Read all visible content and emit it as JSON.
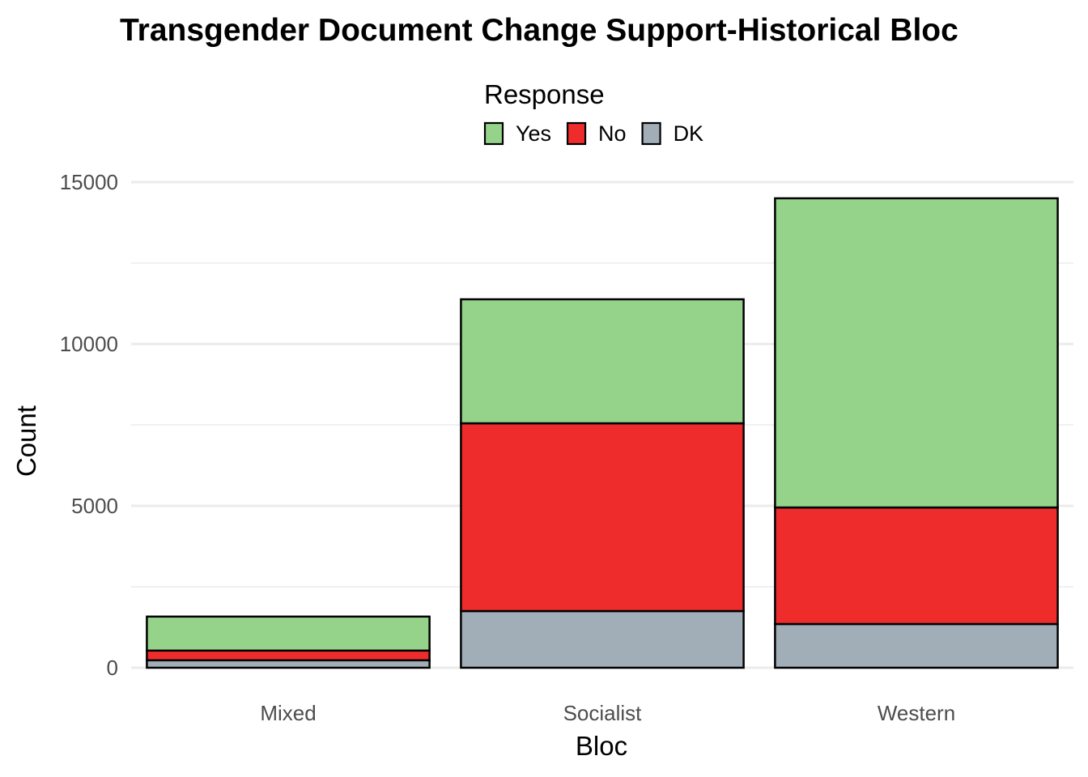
{
  "chart_data": {
    "type": "bar",
    "stacked": true,
    "title": "Transgender Document Change Support-Historical Bloc",
    "xlabel": "Bloc",
    "ylabel": "Count",
    "categories": [
      "Mixed",
      "Socialist",
      "Western"
    ],
    "series": [
      {
        "name": "DK",
        "values": [
          230,
          1750,
          1350
        ],
        "color": "#A1AEB8"
      },
      {
        "name": "No",
        "values": [
          300,
          5800,
          3600
        ],
        "color": "#EE2C2C"
      },
      {
        "name": "Yes",
        "values": [
          1050,
          3830,
          9550
        ],
        "color": "#94D389"
      }
    ],
    "legend": {
      "title": "Response",
      "position": "top",
      "order": [
        "Yes",
        "No",
        "DK"
      ]
    },
    "ylim": [
      0,
      15500
    ],
    "yticks": [
      0,
      5000,
      10000,
      15000
    ],
    "ytick_labels": [
      "0",
      "5000",
      "10000",
      "15000"
    ],
    "grid": true
  }
}
